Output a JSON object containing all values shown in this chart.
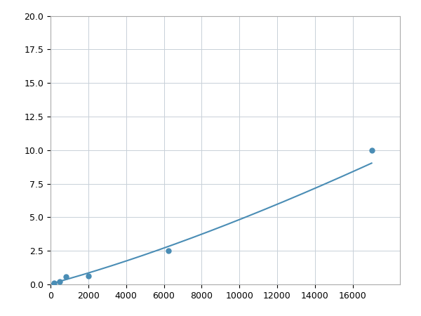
{
  "x": [
    200,
    500,
    800,
    2000,
    6250,
    17000
  ],
  "y": [
    0.1,
    0.2,
    0.6,
    0.65,
    2.5,
    10.0
  ],
  "line_color": "#4a8db5",
  "marker_color": "#4a8db5",
  "marker_style": "o",
  "marker_size": 5,
  "line_width": 1.5,
  "xlim": [
    0,
    18500
  ],
  "ylim": [
    0,
    20
  ],
  "xticks": [
    0,
    2000,
    4000,
    6000,
    8000,
    10000,
    12000,
    14000,
    16000
  ],
  "xtick_labels": [
    "0",
    "2000",
    "4000",
    "6000",
    "8000",
    "10000",
    "12000",
    "14000",
    "16000"
  ],
  "yticks": [
    0.0,
    2.5,
    5.0,
    7.5,
    10.0,
    12.5,
    15.0,
    17.5,
    20.0
  ],
  "grid": true,
  "background_color": "#ffffff",
  "grid_color": "#c8d0d8",
  "figsize": [
    6.0,
    4.5
  ],
  "dpi": 100
}
